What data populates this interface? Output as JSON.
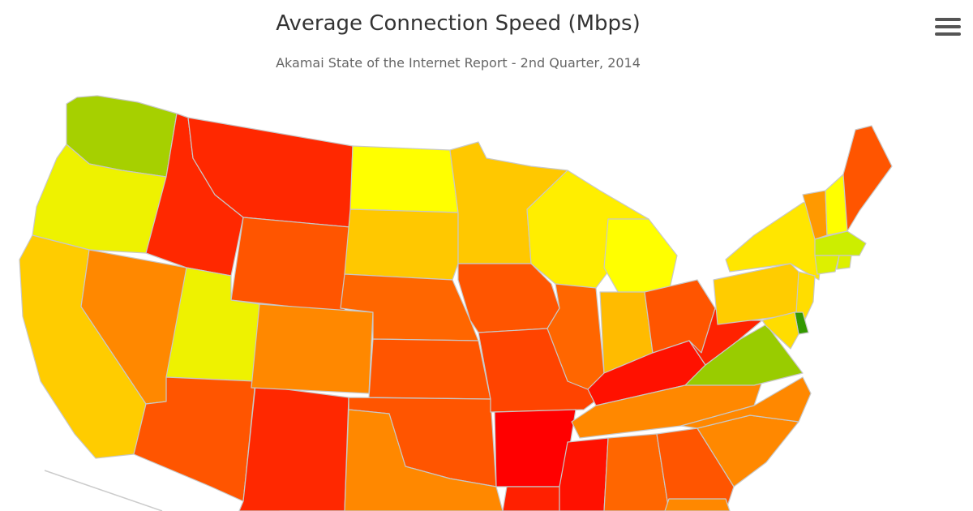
{
  "title": "Average Connection Speed (Mbps)",
  "subtitle": "Akamai State of the Internet Report - 2nd Quarter, 2014",
  "menu_icon": "hamburger-menu-icon",
  "chart_data": {
    "type": "choropleth",
    "scale_colors": [
      "#ff0000",
      "#ff5500",
      "#ff8800",
      "#ffcc00",
      "#ffff00",
      "#99cc00",
      "#339900"
    ],
    "states": [
      {
        "name": "Washington",
        "color": "#a6d000"
      },
      {
        "name": "Oregon",
        "color": "#eef200"
      },
      {
        "name": "California",
        "color": "#ffcc00"
      },
      {
        "name": "Nevada",
        "color": "#ff8800"
      },
      {
        "name": "Idaho",
        "color": "#ff2800"
      },
      {
        "name": "Montana",
        "color": "#ff2800"
      },
      {
        "name": "Wyoming",
        "color": "#ff5500"
      },
      {
        "name": "Utah",
        "color": "#eef200"
      },
      {
        "name": "Arizona",
        "color": "#ff5500"
      },
      {
        "name": "New Mexico",
        "color": "#ff2800"
      },
      {
        "name": "Colorado",
        "color": "#ff8800"
      },
      {
        "name": "North Dakota",
        "color": "#ffff00"
      },
      {
        "name": "South Dakota",
        "color": "#ffc800"
      },
      {
        "name": "Nebraska",
        "color": "#ff6600"
      },
      {
        "name": "Kansas",
        "color": "#ff5500"
      },
      {
        "name": "Oklahoma",
        "color": "#ff5500"
      },
      {
        "name": "Texas",
        "color": "#ff8800"
      },
      {
        "name": "Minnesota",
        "color": "#ffc800"
      },
      {
        "name": "Iowa",
        "color": "#ff5500"
      },
      {
        "name": "Missouri",
        "color": "#ff4400"
      },
      {
        "name": "Arkansas",
        "color": "#ff0000"
      },
      {
        "name": "Louisiana",
        "color": "#ff2000"
      },
      {
        "name": "Wisconsin",
        "color": "#ffee00"
      },
      {
        "name": "Illinois",
        "color": "#ff6600"
      },
      {
        "name": "Michigan",
        "color": "#ffff00"
      },
      {
        "name": "Indiana",
        "color": "#ffbb00"
      },
      {
        "name": "Ohio",
        "color": "#ff5500"
      },
      {
        "name": "Kentucky",
        "color": "#ff1100"
      },
      {
        "name": "Tennessee",
        "color": "#ff8800"
      },
      {
        "name": "Mississippi",
        "color": "#ff1100"
      },
      {
        "name": "Alabama",
        "color": "#ff6600"
      },
      {
        "name": "Georgia",
        "color": "#ff5500"
      },
      {
        "name": "Florida",
        "color": "#ff8800"
      },
      {
        "name": "South Carolina",
        "color": "#ff8800"
      },
      {
        "name": "North Carolina",
        "color": "#ff8800"
      },
      {
        "name": "Virginia",
        "color": "#99cc00"
      },
      {
        "name": "West Virginia",
        "color": "#ff2200"
      },
      {
        "name": "Pennsylvania",
        "color": "#ffcc00"
      },
      {
        "name": "New York",
        "color": "#ffe600"
      },
      {
        "name": "Vermont",
        "color": "#ff9900"
      },
      {
        "name": "New Hampshire",
        "color": "#ffff00"
      },
      {
        "name": "Maine",
        "color": "#ff5500"
      },
      {
        "name": "Massachusetts",
        "color": "#ccee00"
      },
      {
        "name": "Connecticut",
        "color": "#ddf000"
      },
      {
        "name": "Rhode Island",
        "color": "#ddf000"
      },
      {
        "name": "New Jersey",
        "color": "#ffdd00"
      },
      {
        "name": "Delaware",
        "color": "#339900"
      },
      {
        "name": "Maryland",
        "color": "#ffdd00"
      }
    ]
  }
}
